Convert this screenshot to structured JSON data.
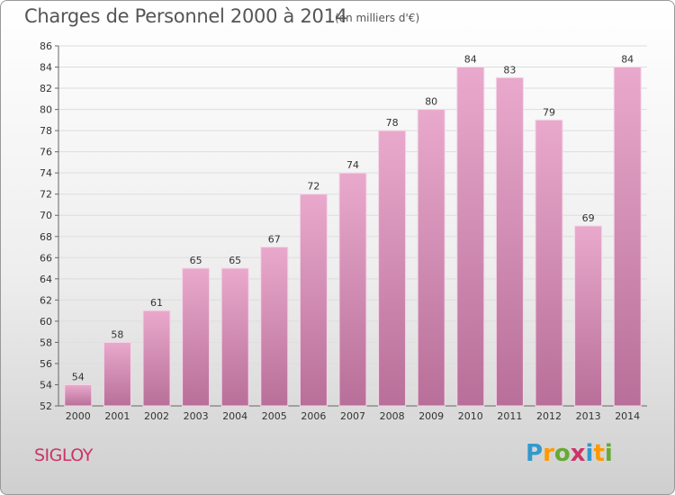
{
  "header": {
    "title": "Charges de Personnel 2000 à 2014",
    "subtitle": "(en milliers d'€)"
  },
  "place": "SIGLOY",
  "logo": {
    "letters": [
      "P",
      "r",
      "o",
      "x",
      "i",
      "t",
      "i"
    ],
    "colors": [
      "#3399cc",
      "#ff9900",
      "#66aa33",
      "#cc3366",
      "#3399cc",
      "#ff9900",
      "#66aa33"
    ]
  },
  "chart_data": {
    "type": "bar",
    "categories": [
      "2000",
      "2001",
      "2002",
      "2003",
      "2004",
      "2005",
      "2006",
      "2007",
      "2008",
      "2009",
      "2010",
      "2011",
      "2012",
      "2013",
      "2014"
    ],
    "values": [
      54,
      58,
      61,
      65,
      65,
      67,
      72,
      74,
      78,
      80,
      84,
      83,
      79,
      69,
      84
    ],
    "title": "Charges de Personnel 2000 à 2014",
    "ylim": [
      52,
      86
    ],
    "yticks": [
      52,
      54,
      56,
      58,
      60,
      62,
      64,
      66,
      68,
      70,
      72,
      74,
      76,
      78,
      80,
      82,
      84,
      86
    ],
    "bar_color": "#cc6699",
    "grid": true
  }
}
